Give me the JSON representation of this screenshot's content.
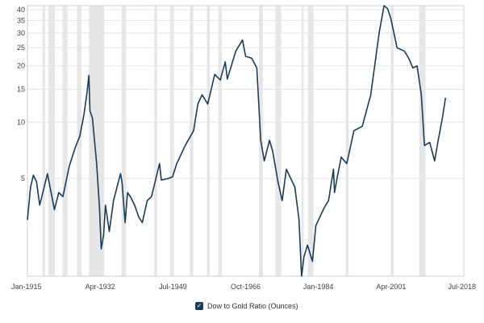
{
  "chart_data": {
    "type": "line",
    "title": "",
    "xlabel": "",
    "ylabel": "",
    "yscale": "log",
    "ylim": [
      1.5,
      42
    ],
    "xlim": [
      "1915-01",
      "2018-07"
    ],
    "grid": true,
    "legend": "bottom-center",
    "y_ticks": [
      "5",
      "10",
      "15",
      "20",
      "25",
      "30",
      "35",
      "40"
    ],
    "x_ticks": [
      "Jan-1915",
      "Apr-1932",
      "Jul-1949",
      "Oct-1966",
      "Jan-1984",
      "Apr-2001",
      "Jul-2018"
    ],
    "recessions": [
      [
        "1918-08",
        "1919-03"
      ],
      [
        "1920-01",
        "1921-07"
      ],
      [
        "1923-05",
        "1924-07"
      ],
      [
        "1926-10",
        "1927-11"
      ],
      [
        "1929-08",
        "1933-03"
      ],
      [
        "1937-05",
        "1938-06"
      ],
      [
        "1945-02",
        "1945-10"
      ],
      [
        "1948-11",
        "1949-10"
      ],
      [
        "1953-07",
        "1954-05"
      ],
      [
        "1957-08",
        "1958-04"
      ],
      [
        "1960-04",
        "1961-02"
      ],
      [
        "1969-12",
        "1970-11"
      ],
      [
        "1973-11",
        "1975-03"
      ],
      [
        "1980-01",
        "1980-07"
      ],
      [
        "1981-07",
        "1982-11"
      ],
      [
        "1990-07",
        "1991-03"
      ],
      [
        "2001-03",
        "2001-11"
      ],
      [
        "2007-12",
        "2009-06"
      ]
    ],
    "series": [
      {
        "name": "Dow to Gold Ratio (Ounces)",
        "color": "#1d3b55",
        "points": [
          [
            "1915-01",
            3.0
          ],
          [
            "1915-10",
            4.5
          ],
          [
            "1916-06",
            5.2
          ],
          [
            "1917-03",
            4.8
          ],
          [
            "1917-12",
            3.6
          ],
          [
            "1918-06",
            4.0
          ],
          [
            "1919-10",
            5.3
          ],
          [
            "1921-06",
            3.4
          ],
          [
            "1922-06",
            4.2
          ],
          [
            "1923-06",
            4.0
          ],
          [
            "1924-12",
            5.8
          ],
          [
            "1926-06",
            7.4
          ],
          [
            "1927-06",
            8.4
          ],
          [
            "1928-06",
            11.0
          ],
          [
            "1929-03",
            14.5
          ],
          [
            "1929-08",
            17.8
          ],
          [
            "1929-11",
            11.5
          ],
          [
            "1930-06",
            10.5
          ],
          [
            "1931-06",
            6.0
          ],
          [
            "1932-02",
            3.5
          ],
          [
            "1932-07",
            2.1
          ],
          [
            "1933-02",
            2.5
          ],
          [
            "1933-07",
            3.6
          ],
          [
            "1934-06",
            2.6
          ],
          [
            "1935-06",
            3.8
          ],
          [
            "1937-02",
            5.3
          ],
          [
            "1937-06",
            4.8
          ],
          [
            "1938-03",
            2.9
          ],
          [
            "1938-10",
            4.2
          ],
          [
            "1939-06",
            4.0
          ],
          [
            "1940-06",
            3.6
          ],
          [
            "1941-06",
            3.1
          ],
          [
            "1942-04",
            2.9
          ],
          [
            "1943-06",
            3.8
          ],
          [
            "1944-06",
            4.0
          ],
          [
            "1946-05",
            6.0
          ],
          [
            "1946-10",
            4.9
          ],
          [
            "1948-06",
            5.0
          ],
          [
            "1949-06",
            5.1
          ],
          [
            "1950-06",
            6.0
          ],
          [
            "1952-06",
            7.5
          ],
          [
            "1954-06",
            9.0
          ],
          [
            "1955-06",
            12.5
          ],
          [
            "1956-06",
            14.0
          ],
          [
            "1957-10",
            12.5
          ],
          [
            "1959-06",
            18.0
          ],
          [
            "1960-10",
            16.8
          ],
          [
            "1961-12",
            21.0
          ],
          [
            "1962-06",
            17.0
          ],
          [
            "1964-06",
            24.0
          ],
          [
            "1966-01",
            27.5
          ],
          [
            "1966-10",
            22.5
          ],
          [
            "1968-03",
            22.0
          ],
          [
            "1969-06",
            19.5
          ],
          [
            "1970-05",
            8.0
          ],
          [
            "1971-03",
            6.2
          ],
          [
            "1972-06",
            8.0
          ],
          [
            "1973-03",
            7.0
          ],
          [
            "1974-06",
            4.8
          ],
          [
            "1975-06",
            3.8
          ],
          [
            "1976-06",
            5.6
          ],
          [
            "1978-06",
            4.5
          ],
          [
            "1979-06",
            3.0
          ],
          [
            "1980-01",
            1.2
          ],
          [
            "1980-08",
            1.9
          ],
          [
            "1981-06",
            2.2
          ],
          [
            "1982-08",
            1.8
          ],
          [
            "1983-06",
            2.8
          ],
          [
            "1985-06",
            3.5
          ],
          [
            "1986-06",
            3.8
          ],
          [
            "1987-08",
            5.6
          ],
          [
            "1987-11",
            4.2
          ],
          [
            "1988-06",
            5.0
          ],
          [
            "1989-06",
            6.5
          ],
          [
            "1990-10",
            6.0
          ],
          [
            "1992-06",
            9.0
          ],
          [
            "1994-06",
            9.5
          ],
          [
            "1996-06",
            14.0
          ],
          [
            "1998-06",
            30.0
          ],
          [
            "1999-08",
            42.0
          ],
          [
            "2000-06",
            40.5
          ],
          [
            "2001-03",
            36.0
          ],
          [
            "2002-09",
            25.0
          ],
          [
            "2004-06",
            24.0
          ],
          [
            "2005-06",
            22.0
          ],
          [
            "2006-06",
            19.5
          ],
          [
            "2007-06",
            20.0
          ],
          [
            "2008-06",
            14.0
          ],
          [
            "2009-03",
            7.5
          ],
          [
            "2010-06",
            7.8
          ],
          [
            "2011-08",
            6.2
          ],
          [
            "2012-06",
            8.0
          ],
          [
            "2013-06",
            10.5
          ],
          [
            "2014-03",
            13.5
          ]
        ]
      }
    ]
  }
}
